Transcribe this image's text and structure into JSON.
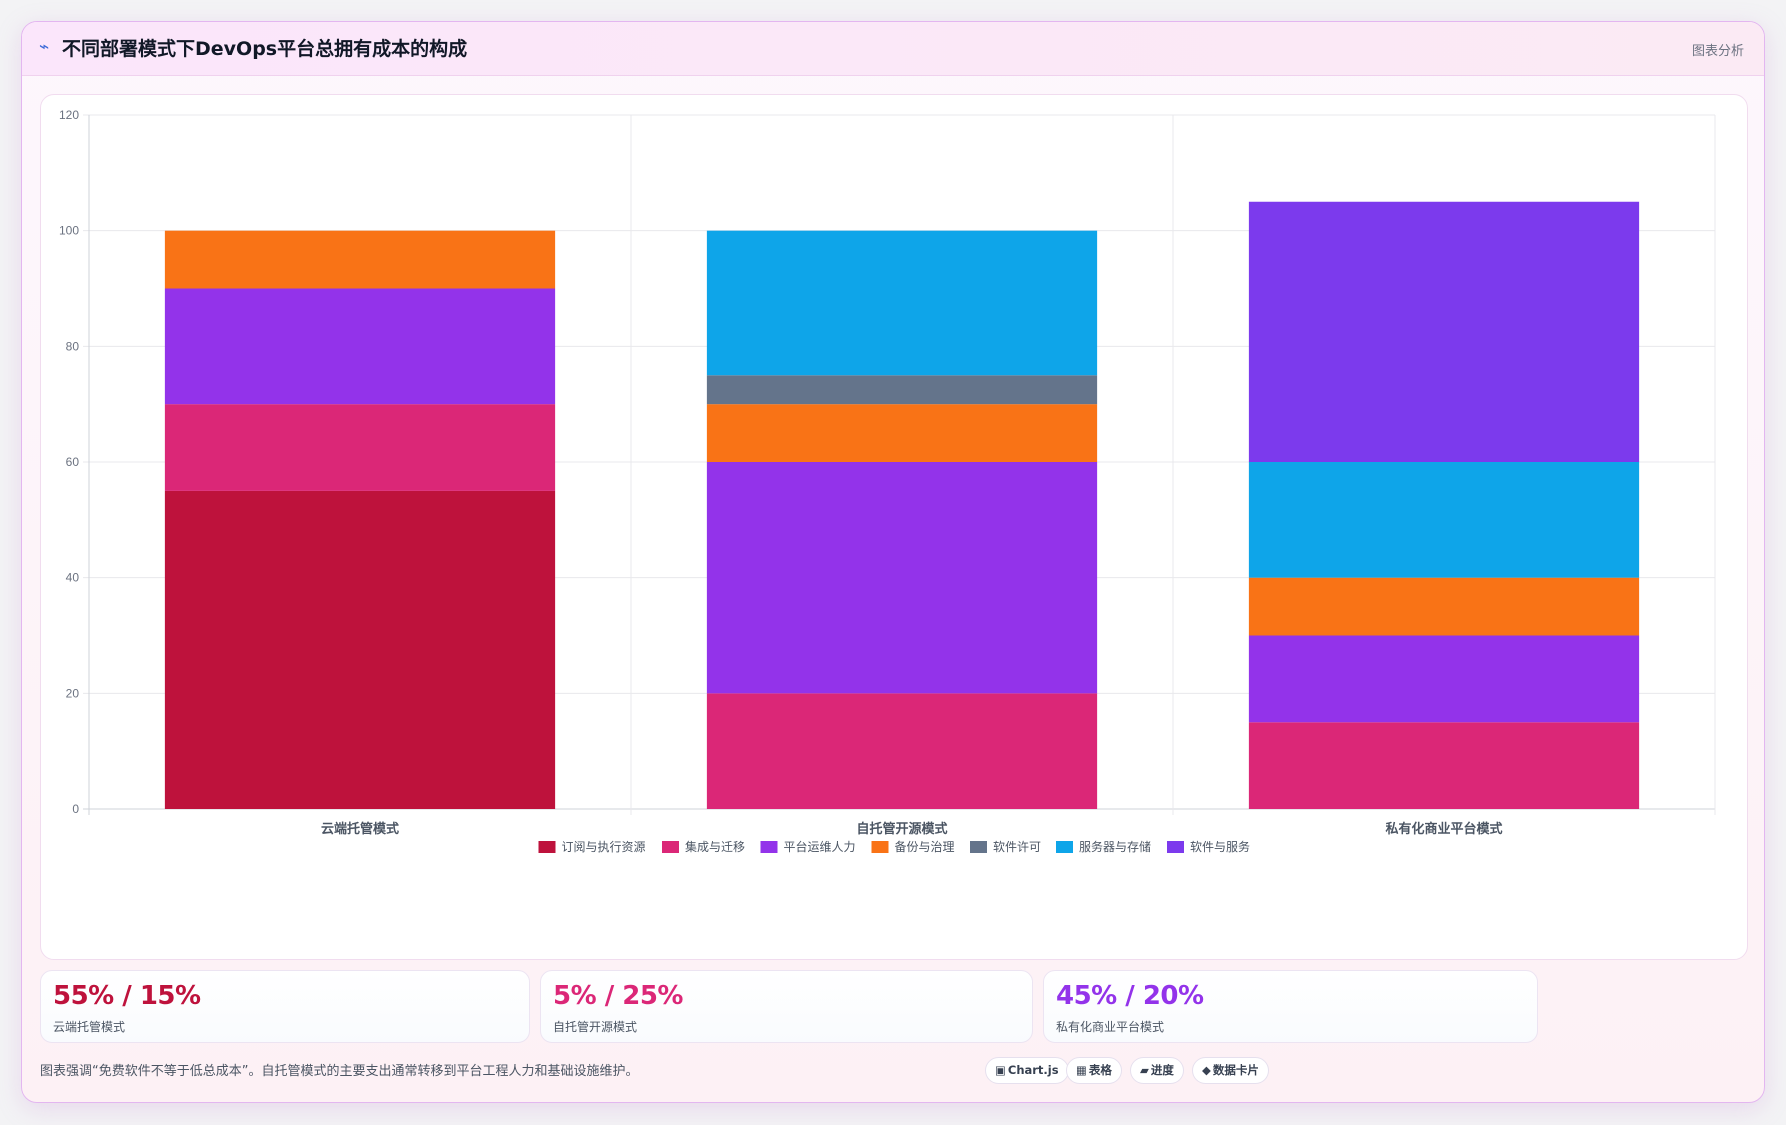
{
  "header": {
    "title": "不同部署模式下DevOps平台总拥有成本的构成",
    "title_icon": "trend-icon",
    "action_label": "图表分析"
  },
  "chart_data": {
    "type": "bar",
    "stacked": true,
    "categories": [
      "云端托管模式",
      "自托管开源模式",
      "私有化商业平台模式"
    ],
    "ylim": [
      0,
      120
    ],
    "yticks": [
      0,
      20,
      40,
      60,
      80,
      100,
      120
    ],
    "grid": true,
    "legend_position": "bottom",
    "series": [
      {
        "name": "订阅与执行资源",
        "color": "#be123c",
        "values": [
          55,
          0,
          0
        ]
      },
      {
        "name": "集成与迁移",
        "color": "#db2777",
        "values": [
          15,
          20,
          15
        ]
      },
      {
        "name": "平台运维人力",
        "color": "#9333ea",
        "values": [
          20,
          40,
          15
        ]
      },
      {
        "name": "备份与治理",
        "color": "#f97316",
        "values": [
          10,
          10,
          10
        ]
      },
      {
        "name": "软件许可",
        "color": "#64748b",
        "values": [
          0,
          5,
          0
        ]
      },
      {
        "name": "服务器与存储",
        "color": "#0ea5e9",
        "values": [
          0,
          25,
          20
        ]
      },
      {
        "name": "软件与服务",
        "color": "#7c3aed",
        "values": [
          0,
          0,
          45
        ]
      }
    ]
  },
  "stats": [
    {
      "value": "55% / 15%",
      "label": "云端托管模式",
      "color": "#be123c"
    },
    {
      "value": "5% / 25%",
      "label": "自托管开源模式",
      "color": "#db2777"
    },
    {
      "value": "45% / 20%",
      "label": "私有化商业平台模式",
      "color": "#9333ea"
    }
  ],
  "footnote": "图表强调“免费软件不等于低总成本”。自托管模式的主要支出通常转移到平台工程人力和基础设施维护。",
  "chips": [
    {
      "icon": "▣",
      "icon_name": "chart-icon",
      "label": "Chart.js"
    },
    {
      "icon": "▦",
      "icon_name": "table-icon",
      "label": "表格"
    },
    {
      "icon": "▰",
      "icon_name": "progress-icon",
      "label": "进度"
    },
    {
      "icon": "◆",
      "icon_name": "card-icon",
      "label": "数据卡片"
    }
  ]
}
